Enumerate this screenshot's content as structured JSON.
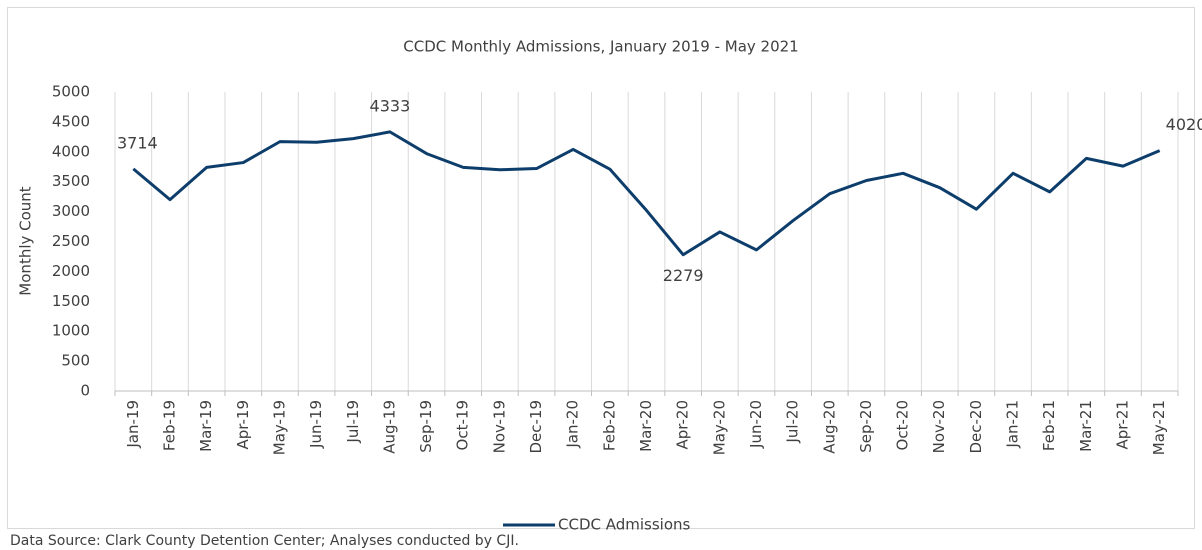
{
  "chart_data": {
    "type": "line",
    "title": "CCDC Monthly Admissions, January 2019 - May 2021",
    "y_label": "Monthly Count",
    "source": "Data Source: Clark County Detention Center; Analyses conducted by CJI.",
    "categories": [
      "Jan-19",
      "Feb-19",
      "Mar-19",
      "Apr-19",
      "May-19",
      "Jun-19",
      "Jul-19",
      "Aug-19",
      "Sep-19",
      "Oct-19",
      "Nov-19",
      "Dec-19",
      "Jan-20",
      "Feb-20",
      "Mar-20",
      "Apr-20",
      "May-20",
      "Jun-20",
      "Jul-20",
      "Aug-20",
      "Sep-20",
      "Oct-20",
      "Nov-20",
      "Dec-20",
      "Jan-21",
      "Feb-21",
      "Mar-21",
      "Apr-21",
      "May-21"
    ],
    "series": [
      {
        "name": "CCDC Admissions",
        "color": "#0d3d6b",
        "values": [
          3714,
          3200,
          3740,
          3820,
          4170,
          4160,
          4220,
          4333,
          3970,
          3740,
          3700,
          3720,
          4040,
          3710,
          3020,
          2279,
          2660,
          2360,
          2850,
          3300,
          3520,
          3640,
          3400,
          3040,
          3640,
          3330,
          3890,
          3760,
          4020
        ]
      }
    ],
    "data_labels": [
      0,
      7,
      15,
      28
    ],
    "ylim": [
      0,
      5000
    ],
    "yticks": [
      0,
      500,
      1000,
      1500,
      2000,
      2500,
      3000,
      3500,
      4000,
      4500,
      5000
    ],
    "grid": "x",
    "legend": "bottom"
  }
}
